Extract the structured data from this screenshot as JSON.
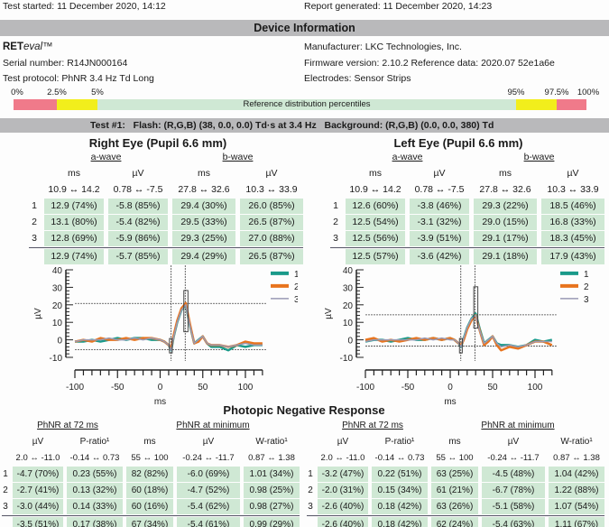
{
  "header": {
    "test_started": "Test started: 11 December 2020, 14:12",
    "report_generated": "Report generated: 11 December 2020, 14:23"
  },
  "device": {
    "section_title": "Device Information",
    "brand_bold": "RET",
    "brand_italic": "eval",
    "brand_tm": "™",
    "serial": "Serial number: R14JN000164",
    "protocol": "Test protocol: PhNR 3.4 Hz Td Long",
    "manufacturer": "Manufacturer: LKC Technologies, Inc.",
    "firmware": "Firmware version: 2.10.2 Reference data: 2020.07 52e1a6e",
    "electrodes": "Electrodes: Sensor Strips"
  },
  "percentiles": {
    "labels": [
      "0%",
      "2.5%",
      "5%",
      "95%",
      "97.5%",
      "100%"
    ],
    "caption": "Reference distribution percentiles",
    "colors": {
      "outer": "#f07a8a",
      "mid": "#f2ee1c",
      "normal": "#cfe8d4"
    }
  },
  "test": {
    "label": "Test #1:",
    "flash": "Flash: (R,G,B) (38, 0.0, 0.0) Td·s at 3.4 Hz",
    "background": "Background: (R,G,B) (0.0, 0.0, 380) Td"
  },
  "eyes": [
    {
      "title": "Right Eye (Pupil 6.6 mm)",
      "a_label": "a-wave",
      "b_label": "b-wave",
      "units": [
        "ms",
        "µV",
        "ms",
        "µV"
      ],
      "ranges": [
        "10.9 ↔ 14.2",
        "0.78 ↔ -7.5",
        "27.8 ↔ 32.6",
        "10.3 ↔ 33.9"
      ],
      "rows": [
        [
          "1",
          "12.9 (74%)",
          "-5.8 (85%)",
          "29.4 (30%)",
          "26.0 (85%)"
        ],
        [
          "2",
          "13.1 (80%)",
          "-5.4 (82%)",
          "29.5 (33%)",
          "26.5 (87%)"
        ],
        [
          "3",
          "12.8 (69%)",
          "-5.9 (86%)",
          "29.3 (25%)",
          "27.0 (88%)"
        ]
      ],
      "average": [
        "",
        "12.9 (74%)",
        "-5.7 (85%)",
        "29.4 (29%)",
        "26.5 (87%)"
      ]
    },
    {
      "title": "Left Eye (Pupil 6.6 mm)",
      "a_label": "a-wave",
      "b_label": "b-wave",
      "units": [
        "ms",
        "µV",
        "ms",
        "µV"
      ],
      "ranges": [
        "10.9 ↔ 14.2",
        "0.78 ↔ -7.5",
        "27.8 ↔ 32.6",
        "10.3 ↔ 33.9"
      ],
      "rows": [
        [
          "1",
          "12.6 (60%)",
          "-3.8 (46%)",
          "29.3 (22%)",
          "18.5 (46%)"
        ],
        [
          "2",
          "12.5 (54%)",
          "-3.1 (32%)",
          "29.0 (15%)",
          "16.8 (33%)"
        ],
        [
          "3",
          "12.5 (56%)",
          "-3.9 (51%)",
          "29.1 (17%)",
          "18.3 (45%)"
        ]
      ],
      "average": [
        "",
        "12.5 (57%)",
        "-3.6 (42%)",
        "29.1 (18%)",
        "17.9 (43%)"
      ]
    }
  ],
  "chart_data": [
    {
      "type": "line",
      "eye": "Right",
      "xlabel": "ms",
      "ylabel": "µV",
      "xlim": [
        -100,
        120
      ],
      "ylim": [
        -10,
        40
      ],
      "xticks": [
        -100,
        -50,
        0,
        50,
        100
      ],
      "yticks": [
        -10,
        0,
        10,
        20,
        30,
        40
      ],
      "x": [
        -100,
        -90,
        -80,
        -70,
        -60,
        -50,
        -40,
        -30,
        -20,
        -10,
        0,
        5,
        10,
        13,
        16,
        20,
        25,
        30,
        35,
        40,
        45,
        50,
        55,
        60,
        70,
        80,
        90,
        100,
        110,
        120
      ],
      "series": [
        {
          "name": "1",
          "color": "#1a9a8a",
          "values": [
            -1,
            -1,
            0,
            -1,
            0,
            1,
            0,
            1,
            1,
            0,
            0,
            -1,
            -3,
            -6,
            2,
            10,
            17,
            20,
            8,
            -2,
            0,
            2,
            -2,
            -4,
            -4,
            -6,
            -3,
            -4,
            -3,
            -3
          ]
        },
        {
          "name": "2",
          "color": "#e8741e",
          "values": [
            -1,
            0,
            -1,
            1,
            0,
            0,
            1,
            0,
            1,
            1,
            0,
            -1,
            -3,
            -5,
            3,
            11,
            18,
            21,
            9,
            -2,
            -1,
            2,
            -2,
            -3,
            -3,
            -4,
            -3,
            -1,
            -2,
            -2
          ]
        },
        {
          "name": "3",
          "color": "#9a9ab4",
          "values": [
            -1,
            0,
            0,
            0,
            1,
            0,
            0,
            1,
            0,
            1,
            0,
            -1,
            -3,
            -6,
            2,
            10,
            17,
            20,
            8,
            -2,
            0,
            2,
            -2,
            -3,
            -3,
            -4,
            -3,
            -2,
            -3,
            -3
          ]
        }
      ],
      "markers": {
        "a_time": 12.9,
        "b_time": 29.4,
        "a_amp": -5.7,
        "b_peak": 20.8,
        "a_box": [
          10.9,
          14.2,
          0.78,
          -7.5
        ],
        "b_box": [
          27.8,
          32.6,
          4.6,
          28.2
        ]
      }
    },
    {
      "type": "line",
      "eye": "Left",
      "xlabel": "ms",
      "ylabel": "µV",
      "xlim": [
        -100,
        120
      ],
      "ylim": [
        -10,
        40
      ],
      "xticks": [
        -100,
        -50,
        0,
        50,
        100
      ],
      "yticks": [
        -10,
        0,
        10,
        20,
        30,
        40
      ],
      "x": [
        -100,
        -90,
        -80,
        -70,
        -60,
        -50,
        -40,
        -30,
        -20,
        -10,
        0,
        5,
        10,
        13,
        16,
        20,
        25,
        30,
        35,
        40,
        45,
        50,
        55,
        60,
        70,
        80,
        90,
        100,
        110,
        120
      ],
      "series": [
        {
          "name": "1",
          "color": "#1a9a8a",
          "values": [
            -1,
            0,
            0,
            -1,
            0,
            1,
            0,
            0,
            1,
            0,
            1,
            0,
            -2,
            -4,
            1,
            7,
            12,
            15,
            6,
            -2,
            0,
            2,
            -2,
            -3,
            -3,
            -4,
            -3,
            0,
            -1,
            0
          ]
        },
        {
          "name": "2",
          "color": "#e8741e",
          "values": [
            0,
            1,
            -1,
            0,
            -1,
            0,
            1,
            0,
            1,
            0,
            1,
            0,
            -2,
            -3,
            0,
            6,
            11,
            14,
            5,
            -3,
            -1,
            2,
            -3,
            -6,
            -4,
            -5,
            -3,
            -1,
            -1,
            -3
          ]
        },
        {
          "name": "3",
          "color": "#9a9ab4",
          "values": [
            -1,
            0,
            0,
            0,
            0,
            0,
            0,
            1,
            0,
            1,
            0,
            0,
            -2,
            -4,
            1,
            7,
            12,
            14,
            5,
            -2,
            0,
            2,
            -2,
            -4,
            -3,
            -4,
            -3,
            -1,
            -1,
            -1
          ]
        }
      ],
      "markers": {
        "a_time": 12.5,
        "b_time": 29.1,
        "a_amp": -3.6,
        "b_peak": 14.3,
        "a_box": [
          10.9,
          14.2,
          0.78,
          -7.5
        ],
        "b_box": [
          27.8,
          32.6,
          6.7,
          30.3
        ]
      }
    }
  ],
  "phnr": {
    "title": "Photopic Negative Response",
    "tables": [
      {
        "h72": "PhNR at 72 ms",
        "hmin": "PhNR at minimum",
        "units": [
          "µV",
          "P-ratio¹",
          "ms",
          "µV",
          "W-ratio¹"
        ],
        "ranges": [
          "2.0 ↔ -11.0",
          "-0.14 ↔ 0.73",
          "55 ↔ 100",
          "-0.24 ↔ -11.7",
          "0.87 ↔ 1.38"
        ],
        "rows": [
          [
            "1",
            "-4.7 (70%)",
            "0.23 (55%)",
            "82 (82%)",
            "-6.0 (69%)",
            "1.01 (34%)"
          ],
          [
            "2",
            "-2.7 (41%)",
            "0.13 (32%)",
            "60 (18%)",
            "-4.7 (52%)",
            "0.98 (25%)"
          ],
          [
            "3",
            "-3.0 (44%)",
            "0.14 (33%)",
            "60 (16%)",
            "-5.4 (62%)",
            "0.98 (27%)"
          ]
        ],
        "average": [
          "",
          "-3.5 (51%)",
          "0.17 (38%)",
          "67 (34%)",
          "-5.4 (61%)",
          "0.99 (29%)"
        ]
      },
      {
        "h72": "PhNR at 72 ms",
        "hmin": "PhNR at minimum",
        "units": [
          "µV",
          "P-ratio¹",
          "ms",
          "µV",
          "W-ratio¹"
        ],
        "ranges": [
          "2.0 ↔ -11.0",
          "-0.14 ↔ 0.73",
          "55 ↔ 100",
          "-0.24 ↔ -11.7",
          "0.87 ↔ 1.38"
        ],
        "rows": [
          [
            "1",
            "-3.2 (47%)",
            "0.22 (51%)",
            "63 (25%)",
            "-4.5 (48%)",
            "1.04 (42%)"
          ],
          [
            "2",
            "-2.0 (31%)",
            "0.15 (34%)",
            "61 (21%)",
            "-6.7 (78%)",
            "1.22 (88%)"
          ],
          [
            "3",
            "-2.6 (40%)",
            "0.18 (42%)",
            "63 (26%)",
            "-5.1 (58%)",
            "1.07 (54%)"
          ]
        ],
        "average": [
          "",
          "-2.6 (40%)",
          "0.18 (42%)",
          "62 (24%)",
          "-5.4 (63%)",
          "1.11 (67%)"
        ]
      }
    ]
  }
}
